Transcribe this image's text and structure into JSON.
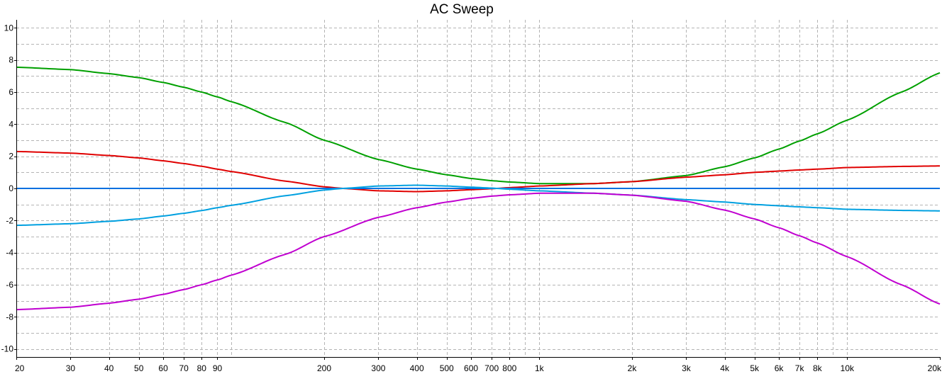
{
  "chart_data": {
    "type": "line",
    "title": "AC Sweep",
    "xlabel": "",
    "ylabel": "",
    "x_scale": "log",
    "xlim": [
      20,
      20000
    ],
    "ylim": [
      -10.5,
      10.5
    ],
    "grid": true,
    "legend": "none",
    "colors": {
      "background": "#ffffff",
      "grid": "#b4b4b4",
      "axis": "#000000"
    },
    "x_ticks": [
      {
        "value": 20,
        "label": "20"
      },
      {
        "value": 30,
        "label": "30"
      },
      {
        "value": 40,
        "label": "40"
      },
      {
        "value": 50,
        "label": "50"
      },
      {
        "value": 60,
        "label": "60"
      },
      {
        "value": 70,
        "label": "70"
      },
      {
        "value": 80,
        "label": "80"
      },
      {
        "value": 90,
        "label": "90"
      },
      {
        "value": 200,
        "label": "200"
      },
      {
        "value": 300,
        "label": "300"
      },
      {
        "value": 400,
        "label": "400"
      },
      {
        "value": 500,
        "label": "500"
      },
      {
        "value": 600,
        "label": "600"
      },
      {
        "value": 700,
        "label": "700"
      },
      {
        "value": 800,
        "label": "800"
      },
      {
        "value": 1000,
        "label": "1k"
      },
      {
        "value": 2000,
        "label": "2k"
      },
      {
        "value": 3000,
        "label": "3k"
      },
      {
        "value": 4000,
        "label": "4k"
      },
      {
        "value": 5000,
        "label": "5k"
      },
      {
        "value": 6000,
        "label": "6k"
      },
      {
        "value": 7000,
        "label": "7k"
      },
      {
        "value": 8000,
        "label": "8k"
      },
      {
        "value": 10000,
        "label": "10k"
      },
      {
        "value": 20000,
        "label": "20k"
      }
    ],
    "x_grid_extra": [
      100,
      900,
      9000
    ],
    "y_ticks": [
      {
        "value": 10,
        "label": "10"
      },
      {
        "value": 8,
        "label": "8"
      },
      {
        "value": 6,
        "label": "6"
      },
      {
        "value": 4,
        "label": "4"
      },
      {
        "value": 2,
        "label": "2"
      },
      {
        "value": 0,
        "label": "0"
      },
      {
        "value": -2,
        "label": "-2"
      },
      {
        "value": -4,
        "label": "-4"
      },
      {
        "value": -6,
        "label": "-6"
      },
      {
        "value": -8,
        "label": "-8"
      },
      {
        "value": -10,
        "label": "-10"
      }
    ],
    "y_grid_extra": [
      9,
      7,
      5,
      3,
      1,
      -1,
      -3,
      -5,
      -7,
      -9
    ],
    "series": [
      {
        "color": "#00a000",
        "x": [
          20,
          30,
          40,
          50,
          60,
          70,
          80,
          90,
          100,
          150,
          200,
          300,
          400,
          500,
          600,
          700,
          800,
          1000,
          1500,
          2000,
          3000,
          4000,
          5000,
          6000,
          7000,
          8000,
          10000,
          15000,
          20000
        ],
        "y": [
          7.55,
          7.4,
          7.15,
          6.9,
          6.6,
          6.3,
          6.0,
          5.7,
          5.4,
          4.1,
          3.0,
          1.8,
          1.2,
          0.85,
          0.62,
          0.48,
          0.4,
          0.3,
          0.3,
          0.42,
          0.8,
          1.35,
          1.9,
          2.45,
          2.95,
          3.4,
          4.25,
          6.0,
          7.2
        ]
      },
      {
        "color": "#e00000",
        "x": [
          20,
          30,
          40,
          50,
          60,
          70,
          80,
          90,
          100,
          150,
          200,
          230,
          300,
          400,
          500,
          600,
          700,
          800,
          1000,
          1500,
          2000,
          3000,
          4000,
          5000,
          6000,
          7000,
          8000,
          10000,
          15000,
          20000
        ],
        "y": [
          2.3,
          2.2,
          2.05,
          1.9,
          1.72,
          1.55,
          1.38,
          1.2,
          1.05,
          0.45,
          0.1,
          0.0,
          -0.15,
          -0.2,
          -0.15,
          -0.08,
          -0.02,
          0.05,
          0.15,
          0.3,
          0.42,
          0.7,
          0.85,
          1.0,
          1.08,
          1.15,
          1.2,
          1.3,
          1.37,
          1.4
        ]
      },
      {
        "color": "#0070e0",
        "x": [
          20,
          20000
        ],
        "y": [
          0,
          0
        ]
      },
      {
        "color": "#00a0e0",
        "x": [
          20,
          30,
          40,
          50,
          60,
          70,
          80,
          90,
          100,
          150,
          200,
          230,
          300,
          400,
          500,
          600,
          700,
          800,
          1000,
          1500,
          2000,
          3000,
          4000,
          5000,
          6000,
          7000,
          8000,
          10000,
          15000,
          20000
        ],
        "y": [
          -2.3,
          -2.2,
          -2.05,
          -1.9,
          -1.72,
          -1.55,
          -1.38,
          -1.2,
          -1.05,
          -0.45,
          -0.1,
          0.0,
          0.15,
          0.2,
          0.15,
          0.08,
          0.02,
          -0.05,
          -0.15,
          -0.3,
          -0.42,
          -0.7,
          -0.85,
          -1.0,
          -1.08,
          -1.15,
          -1.2,
          -1.3,
          -1.37,
          -1.4
        ]
      },
      {
        "color": "#c000d0",
        "x": [
          20,
          30,
          40,
          50,
          60,
          70,
          80,
          90,
          100,
          150,
          200,
          300,
          400,
          500,
          600,
          700,
          800,
          1000,
          1500,
          2000,
          3000,
          4000,
          5000,
          6000,
          7000,
          8000,
          10000,
          15000,
          20000
        ],
        "y": [
          -7.55,
          -7.4,
          -7.15,
          -6.9,
          -6.6,
          -6.3,
          -6.0,
          -5.7,
          -5.4,
          -4.1,
          -3.0,
          -1.8,
          -1.2,
          -0.85,
          -0.62,
          -0.48,
          -0.4,
          -0.3,
          -0.3,
          -0.42,
          -0.8,
          -1.35,
          -1.9,
          -2.45,
          -2.95,
          -3.4,
          -4.25,
          -6.0,
          -7.2
        ]
      }
    ]
  }
}
